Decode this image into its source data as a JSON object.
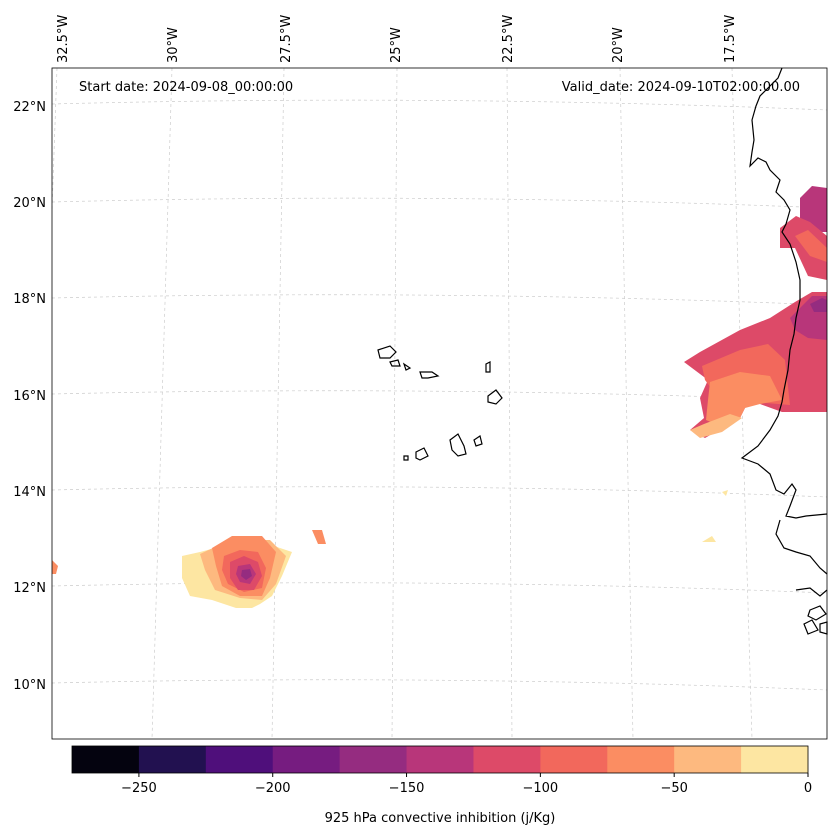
{
  "map": {
    "start_label": "Start date: 2024-09-08_00:00:00",
    "valid_label": "Valid_date: 2024-09-10T02:00:00.00",
    "variable": "925 hPa convective inhibition",
    "units": "j/Kg",
    "colorbar_title": "925 hPa convective inhibition (j/Kg)",
    "lon_labels": [
      "32.5°W",
      "30°W",
      "27.5°W",
      "25°W",
      "22.5°W",
      "20°W",
      "17.5°W"
    ],
    "lat_labels": [
      "22°N",
      "20°N",
      "18°N",
      "16°N",
      "14°N",
      "12°N",
      "10°N"
    ],
    "colorbar": {
      "levels": [
        -275,
        -250,
        -225,
        -200,
        -175,
        -150,
        -125,
        -100,
        -75,
        -50,
        -25,
        0
      ],
      "colors": [
        "#04030f",
        "#221150",
        "#4f0f7b",
        "#761c80",
        "#952c80",
        "#b8367a",
        "#dd4a68",
        "#f2685c",
        "#fb8d62",
        "#fdb97f",
        "#fde6a2"
      ],
      "tick_labels": [
        "−250",
        "−200",
        "−150",
        "−100",
        "−50",
        "0"
      ]
    },
    "features": [
      "Cape Verde islands",
      "West African coastline (Senegal, Gambia, Guinea-Bissau, Mauritania)",
      "Convective inhibition cluster near 12°N 28°W",
      "Convective inhibition region over Senegal/Mauritania coast"
    ]
  }
}
